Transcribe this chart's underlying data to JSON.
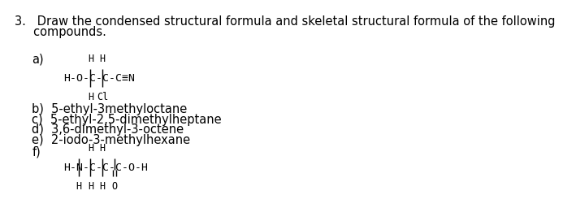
{
  "bg_color": "#ffffff",
  "title_line1": "3.   Draw the condensed structural formula and skeletal structural formula of the following",
  "title_line2": "     compounds.",
  "label_a": "a)",
  "label_b": "b)  5-ethyl-3methyloctane",
  "label_c": "c)  5-ethyl-2,5-dimethylheptane",
  "label_d": "d)  3,6-dimethyl-3-octene",
  "label_e": "e)  2-iodo-3-methylhexane",
  "label_f": "f)",
  "fontsize": 10.5,
  "formula_fontsize": 9.5,
  "sub_fontsize": 8.5
}
